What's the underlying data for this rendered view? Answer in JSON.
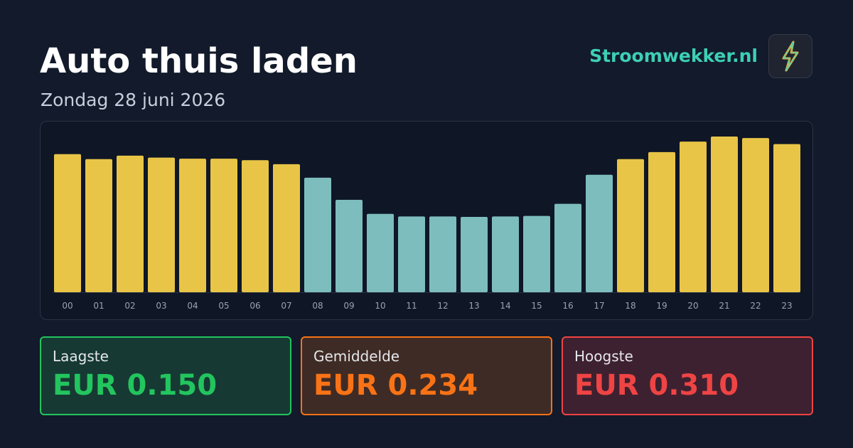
{
  "header": {
    "title": "Auto thuis laden",
    "subtitle": "Zondag 28 juni 2026",
    "brand": "Stroomwekker.nl"
  },
  "chart_data": {
    "type": "bar",
    "categories": [
      "00",
      "01",
      "02",
      "03",
      "04",
      "05",
      "06",
      "07",
      "08",
      "09",
      "10",
      "11",
      "12",
      "13",
      "14",
      "15",
      "16",
      "17",
      "18",
      "19",
      "20",
      "21",
      "22",
      "23"
    ],
    "values": [
      0.275,
      0.265,
      0.272,
      0.268,
      0.266,
      0.266,
      0.263,
      0.255,
      0.228,
      0.184,
      0.156,
      0.151,
      0.151,
      0.15,
      0.151,
      0.152,
      0.176,
      0.234,
      0.265,
      0.279,
      0.3,
      0.31,
      0.307,
      0.295
    ],
    "colors": [
      "#e8c547",
      "#e8c547",
      "#e8c547",
      "#e8c547",
      "#e8c547",
      "#e8c547",
      "#e8c547",
      "#e8c547",
      "#7dbdbd",
      "#7dbdbd",
      "#7dbdbd",
      "#7dbdbd",
      "#7dbdbd",
      "#7dbdbd",
      "#7dbdbd",
      "#7dbdbd",
      "#7dbdbd",
      "#7dbdbd",
      "#e8c547",
      "#e8c547",
      "#e8c547",
      "#e8c547",
      "#e8c547",
      "#e8c547"
    ]
  },
  "stats": [
    {
      "label": "Laagste",
      "value": "EUR 0.150",
      "color": "#22c55e",
      "background": "#163a33"
    },
    {
      "label": "Gemiddelde",
      "value": "EUR 0.234",
      "color": "#f97316",
      "background": "#3f2b25"
    },
    {
      "label": "Hoogste",
      "value": "EUR 0.310",
      "color": "#ef4444",
      "background": "#3e2130"
    }
  ]
}
